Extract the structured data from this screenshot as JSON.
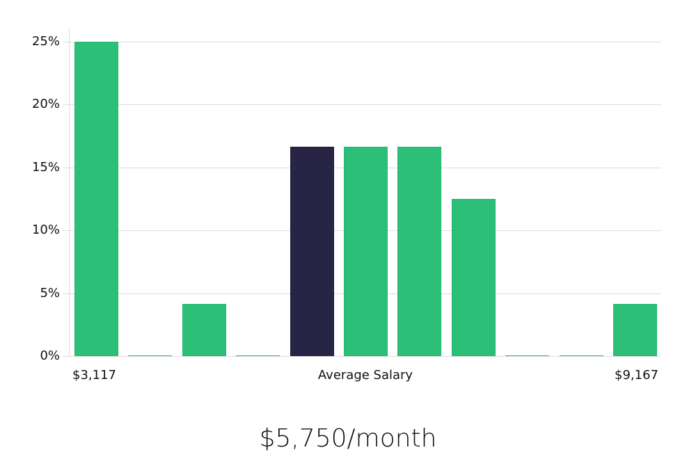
{
  "chart_data": {
    "type": "bar",
    "title": "",
    "xlabel": "Average Salary",
    "ylabel": "",
    "categories": [
      "bin1",
      "bin2",
      "bin3",
      "bin4",
      "bin5",
      "bin6",
      "bin7",
      "bin8",
      "bin9",
      "bin10",
      "bin11"
    ],
    "values": [
      25.0,
      0,
      4.17,
      0,
      16.67,
      16.67,
      16.67,
      12.5,
      0,
      0,
      4.17
    ],
    "highlight_index": 4,
    "x_range_labels": {
      "min": "$3,117",
      "max": "$9,167"
    },
    "yticks": [
      "0%",
      "5%",
      "10%",
      "15%",
      "20%",
      "25%"
    ],
    "ylim": [
      0,
      26
    ],
    "grid": true,
    "colors": {
      "bar": "#2bbf78",
      "highlight": "#272446",
      "grid": "#dcdcdc"
    }
  },
  "axis": {
    "x_min_label": "$3,117",
    "x_center_label": "Average Salary",
    "x_max_label": "$9,167"
  },
  "footer": {
    "average_salary": "$5,750/month"
  }
}
